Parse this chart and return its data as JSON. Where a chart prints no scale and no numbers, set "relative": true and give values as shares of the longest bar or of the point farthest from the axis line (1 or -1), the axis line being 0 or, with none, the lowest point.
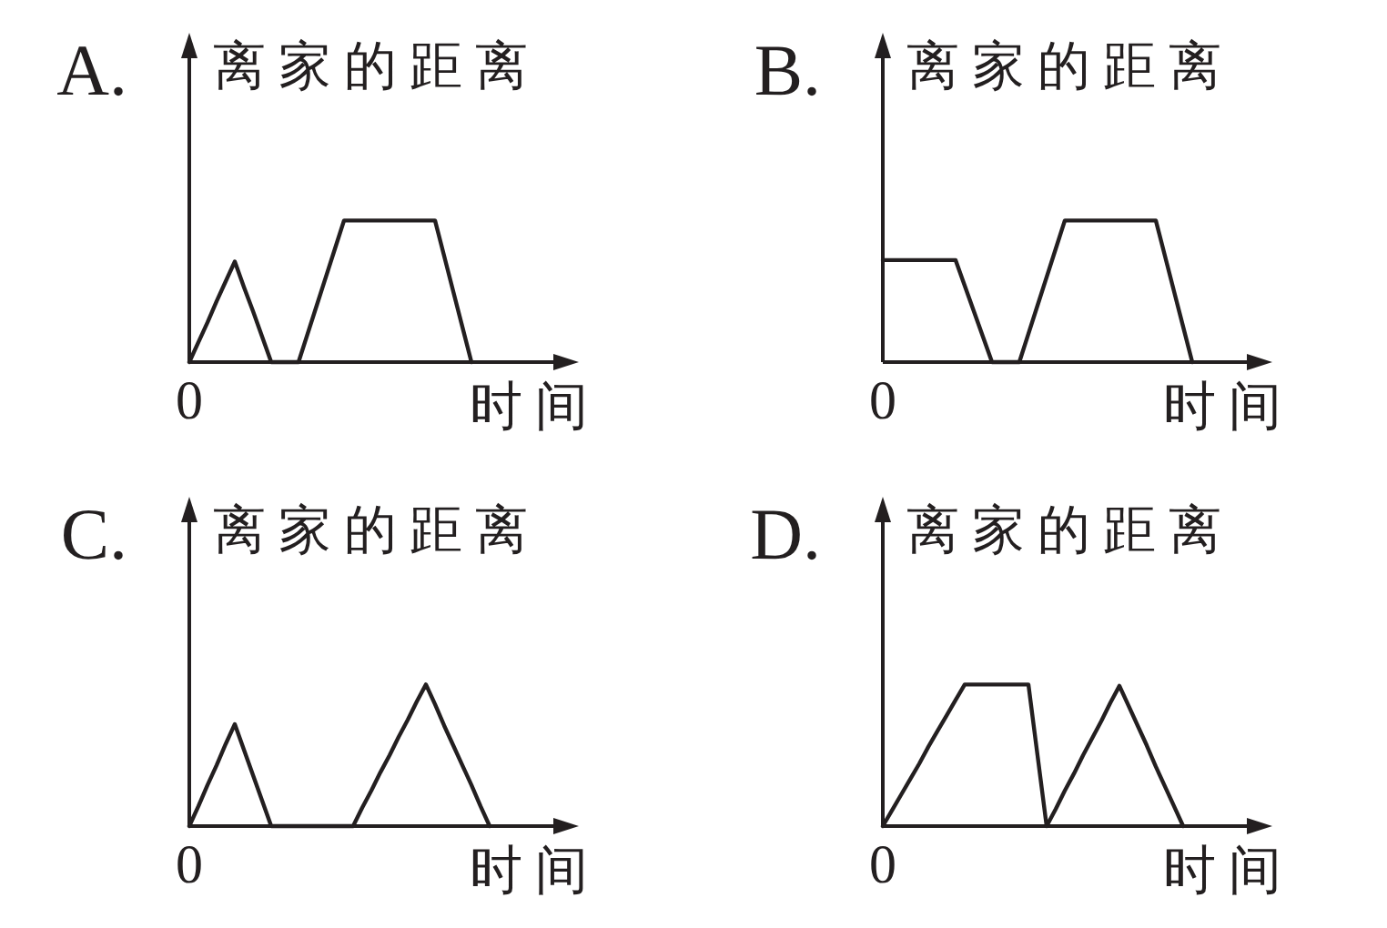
{
  "chart_data": [
    {
      "type": "line",
      "title": "A.",
      "ylabel": "离家的距离",
      "xlabel": "时间",
      "relative": true,
      "annotations": [
        "0"
      ],
      "color": "#231f20",
      "categories": [
        null,
        null,
        null,
        null,
        null,
        null,
        null,
        null,
        null,
        null,
        null,
        null,
        null,
        null,
        null,
        null,
        null,
        null,
        null,
        null,
        null,
        null,
        null,
        null,
        null,
        null,
        null,
        null,
        null,
        null,
        null,
        null
      ],
      "values": [
        0,
        0.14,
        0.28,
        0.43,
        0.57,
        0.71,
        0.53,
        0.36,
        0.18,
        0,
        0,
        0,
        0,
        0.2,
        0.4,
        0.6,
        0.8,
        1,
        1,
        1,
        1,
        1,
        1,
        1,
        1,
        1,
        1,
        1,
        0.75,
        0.5,
        0.25,
        0
      ]
    },
    {
      "type": "line",
      "title": "B.",
      "ylabel": "离家的距离",
      "xlabel": "时间",
      "relative": true,
      "annotations": [
        "0"
      ],
      "color": "#231f20",
      "categories": [
        null,
        null,
        null,
        null,
        null,
        null,
        null,
        null,
        null,
        null,
        null,
        null,
        null,
        null,
        null,
        null,
        null,
        null,
        null,
        null,
        null,
        null,
        null,
        null,
        null,
        null,
        null,
        null,
        null,
        null,
        null,
        null,
        null,
        null,
        null
      ],
      "values": [
        0.72,
        0.72,
        0.72,
        0.72,
        0.72,
        0.72,
        0.72,
        0.72,
        0.72,
        0.54,
        0.36,
        0.18,
        0,
        0,
        0,
        0,
        0.2,
        0.4,
        0.6,
        0.8,
        1,
        1,
        1,
        1,
        1,
        1,
        1,
        1,
        1,
        1,
        1,
        0.75,
        0.5,
        0.25,
        0
      ]
    },
    {
      "type": "line",
      "title": "C.",
      "ylabel": "离家的距离",
      "xlabel": "时间",
      "relative": true,
      "annotations": [
        "0"
      ],
      "color": "#231f20",
      "categories": [
        null,
        null,
        null,
        null,
        null,
        null,
        null,
        null,
        null,
        null,
        null,
        null,
        null,
        null,
        null,
        null,
        null,
        null,
        null,
        null,
        null,
        null,
        null,
        null,
        null,
        null,
        null,
        null,
        null,
        null,
        null,
        null,
        null,
        null
      ],
      "values": [
        0,
        0.14,
        0.29,
        0.43,
        0.58,
        0.72,
        0.54,
        0.36,
        0.18,
        0,
        0,
        0,
        0,
        0,
        0,
        0,
        0,
        0,
        0,
        0.13,
        0.25,
        0.38,
        0.5,
        0.63,
        0.75,
        0.88,
        1,
        0.86,
        0.71,
        0.57,
        0.43,
        0.29,
        0.14,
        0
      ]
    },
    {
      "type": "line",
      "title": "D.",
      "ylabel": "离家的距离",
      "xlabel": "时间",
      "relative": true,
      "annotations": [
        "0"
      ],
      "color": "#231f20",
      "categories": [
        null,
        null,
        null,
        null,
        null,
        null,
        null,
        null,
        null,
        null,
        null,
        null,
        null,
        null,
        null,
        null,
        null,
        null,
        null,
        null,
        null,
        null,
        null,
        null,
        null,
        null,
        null,
        null,
        null,
        null,
        null,
        null,
        null,
        null
      ],
      "values": [
        0,
        0.11,
        0.22,
        0.33,
        0.44,
        0.56,
        0.67,
        0.78,
        0.89,
        1,
        1,
        1,
        1,
        1,
        1,
        1,
        1,
        0.5,
        0,
        0.12,
        0.25,
        0.37,
        0.5,
        0.62,
        0.74,
        0.87,
        0.99,
        0.85,
        0.71,
        0.57,
        0.42,
        0.28,
        0.14,
        0
      ]
    }
  ]
}
